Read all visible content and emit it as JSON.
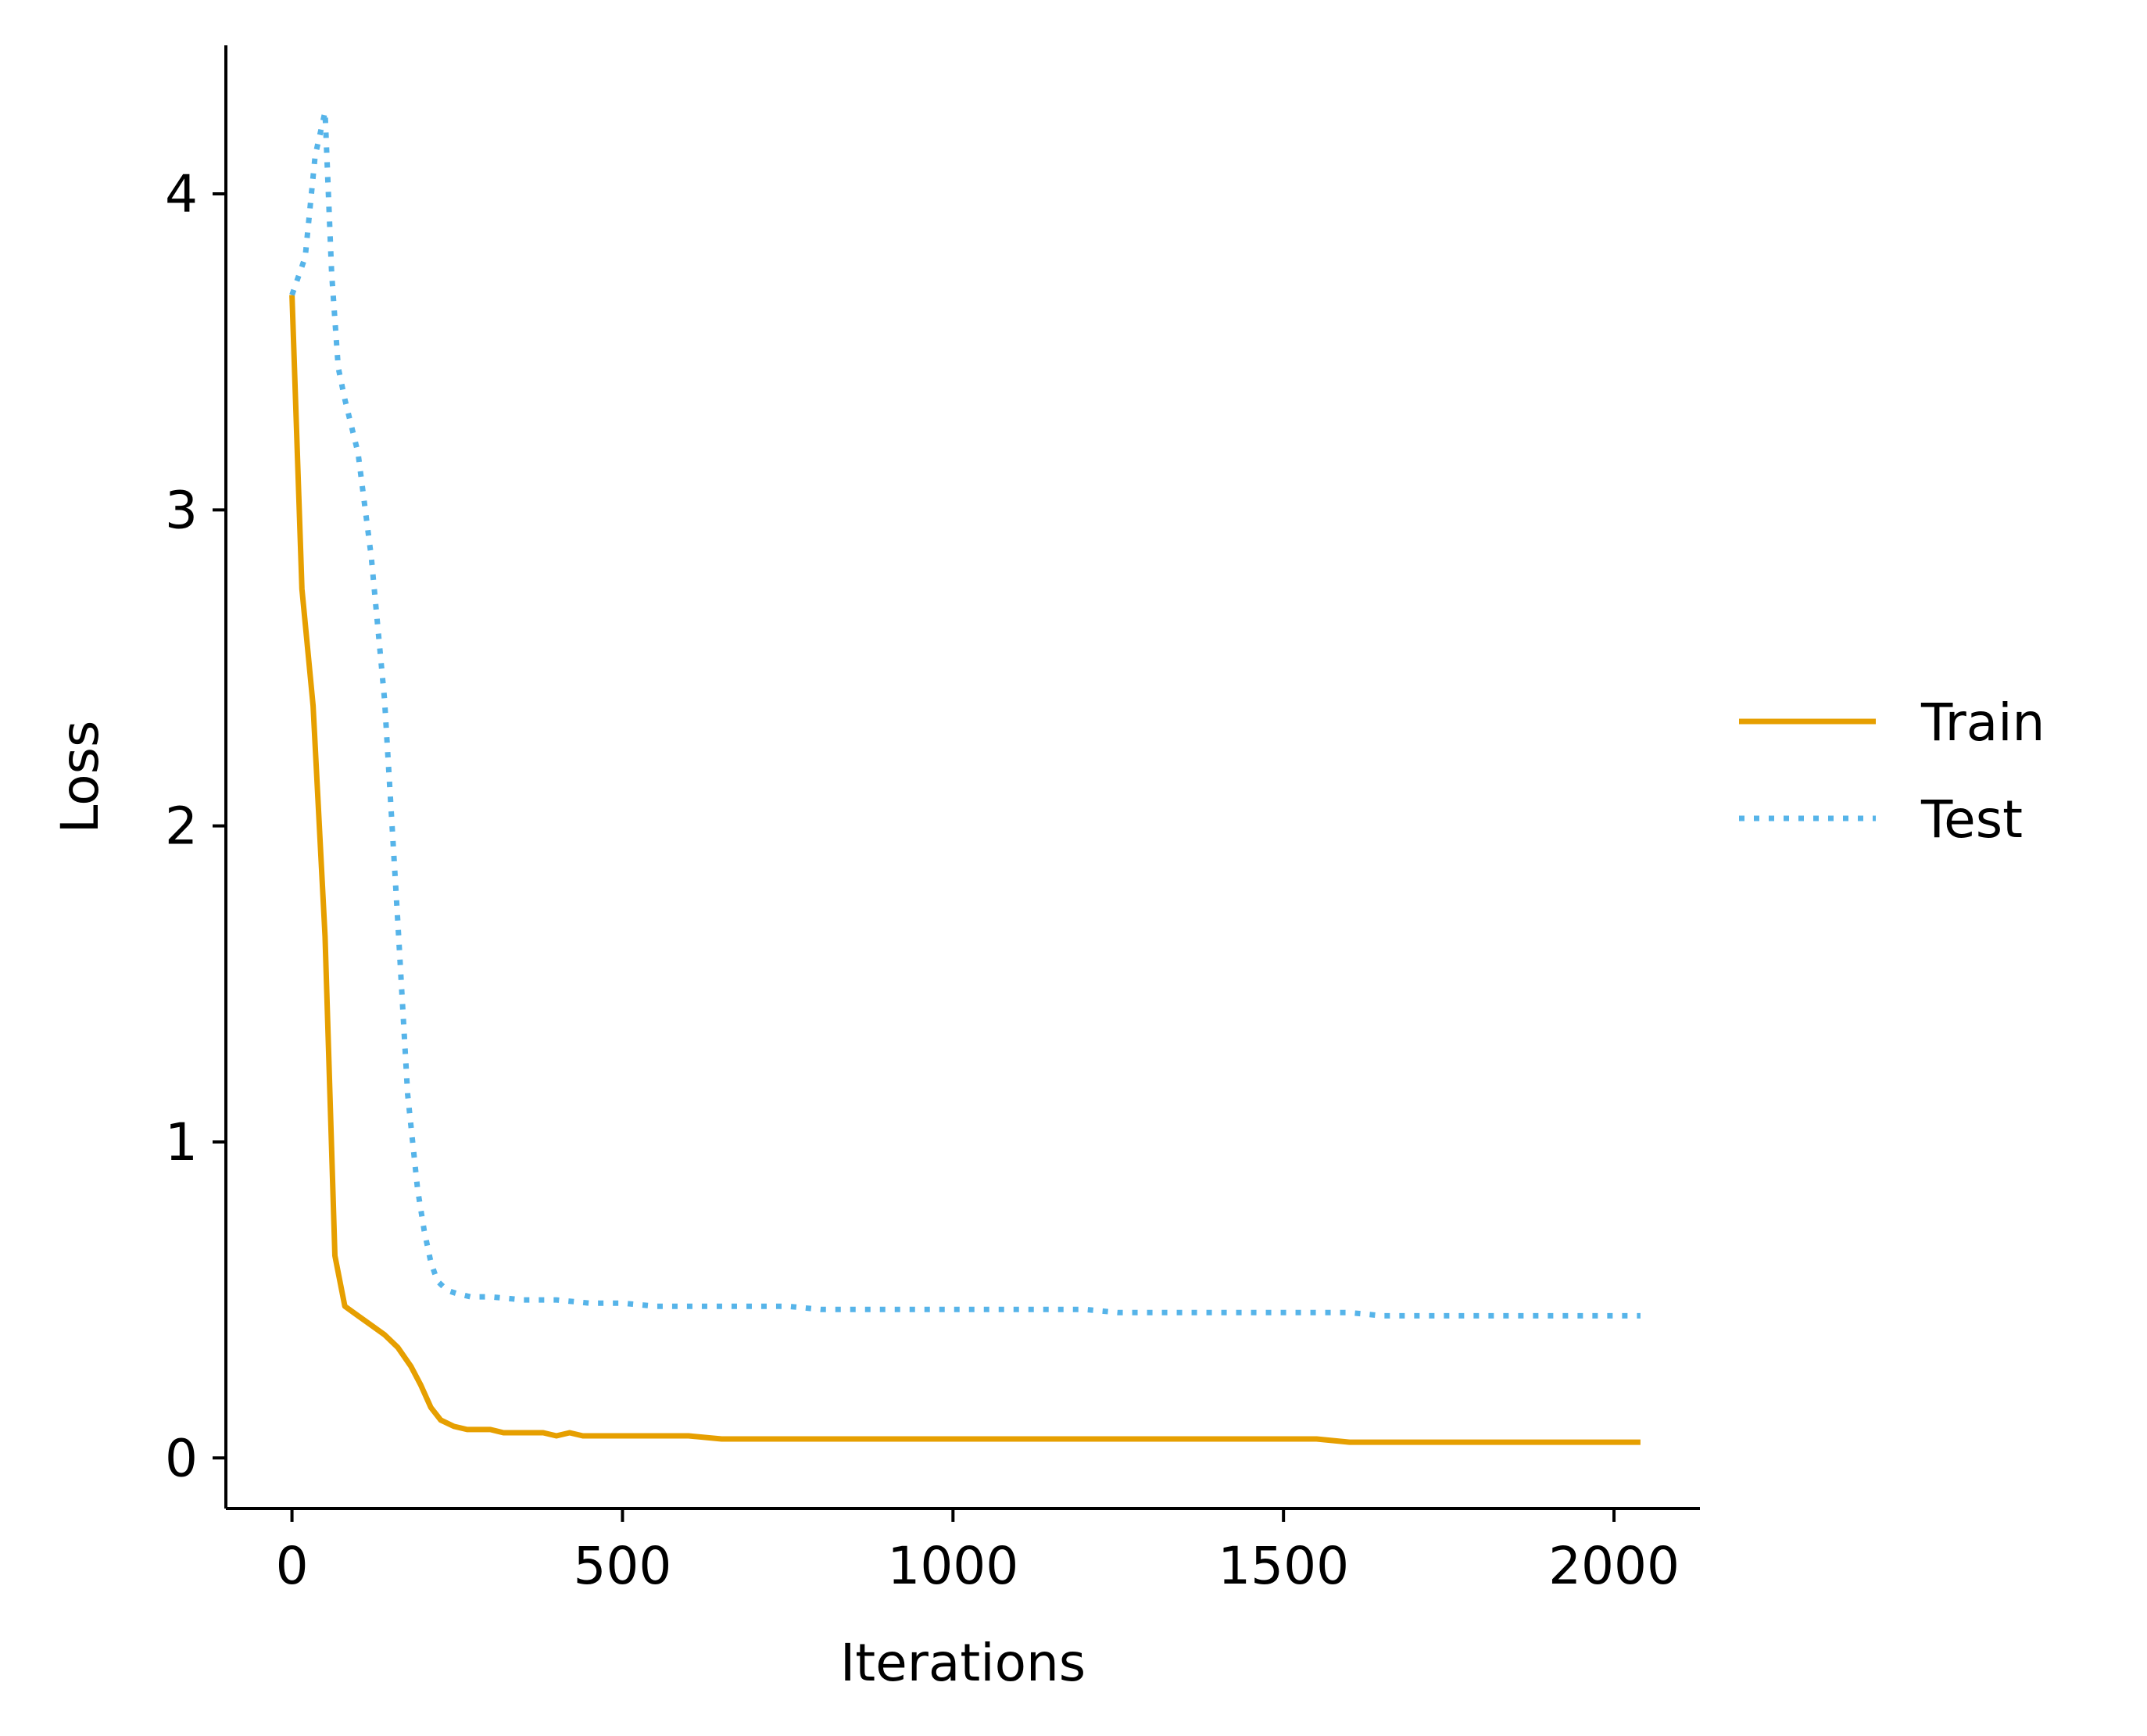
{
  "chart_data": {
    "type": "line",
    "xlabel": "Iterations",
    "ylabel": "Loss",
    "xlim": [
      -100,
      2130
    ],
    "ylim": [
      -0.16,
      4.47
    ],
    "xticks": [
      0,
      500,
      1000,
      1500,
      2000
    ],
    "xtick_labels": [
      "0",
      "500",
      "1000",
      "1500",
      "2000"
    ],
    "yticks": [
      0,
      1,
      2,
      3,
      4
    ],
    "ytick_labels": [
      "0",
      "1",
      "2",
      "3",
      "4"
    ],
    "grid": false,
    "legend": {
      "placement": "right",
      "frame": false
    },
    "series": [
      {
        "name": "Train",
        "color": "#E69F00",
        "style": "solid",
        "x": [
          0,
          15,
          32,
          50,
          65,
          80,
          100,
          120,
          140,
          160,
          180,
          195,
          210,
          225,
          245,
          265,
          285,
          300,
          320,
          340,
          360,
          380,
          400,
          420,
          440,
          460,
          480,
          500,
          530,
          560,
          600,
          650,
          700,
          750,
          800,
          850,
          900,
          950,
          1000,
          1050,
          1100,
          1150,
          1200,
          1250,
          1300,
          1350,
          1400,
          1450,
          1500,
          1550,
          1600,
          1650,
          1700,
          1750,
          1800,
          1850,
          1900,
          1950,
          2000,
          2040
        ],
        "y": [
          3.68,
          2.75,
          2.38,
          1.65,
          0.64,
          0.48,
          0.45,
          0.42,
          0.39,
          0.35,
          0.29,
          0.23,
          0.16,
          0.12,
          0.1,
          0.09,
          0.09,
          0.09,
          0.08,
          0.08,
          0.08,
          0.08,
          0.07,
          0.08,
          0.07,
          0.07,
          0.07,
          0.07,
          0.07,
          0.07,
          0.07,
          0.06,
          0.06,
          0.06,
          0.06,
          0.06,
          0.06,
          0.06,
          0.06,
          0.06,
          0.06,
          0.06,
          0.06,
          0.06,
          0.06,
          0.06,
          0.06,
          0.06,
          0.06,
          0.06,
          0.05,
          0.05,
          0.05,
          0.05,
          0.05,
          0.05,
          0.05,
          0.05,
          0.05,
          0.05
        ]
      },
      {
        "name": "Test",
        "color": "#56B4E9",
        "style": "dotted",
        "x": [
          0,
          20,
          35,
          50,
          60,
          70,
          80,
          100,
          120,
          140,
          160,
          175,
          190,
          200,
          210,
          220,
          235,
          250,
          270,
          300,
          350,
          400,
          450,
          500,
          550,
          600,
          650,
          700,
          750,
          800,
          850,
          900,
          950,
          1000,
          1050,
          1100,
          1150,
          1200,
          1250,
          1300,
          1350,
          1400,
          1450,
          1500,
          1550,
          1600,
          1650,
          1700,
          1750,
          1800,
          1850,
          1900,
          1950,
          2000,
          2040
        ],
        "y": [
          3.68,
          3.8,
          4.12,
          4.26,
          3.75,
          3.45,
          3.35,
          3.18,
          2.85,
          2.4,
          1.7,
          1.15,
          0.85,
          0.72,
          0.62,
          0.56,
          0.53,
          0.52,
          0.51,
          0.51,
          0.5,
          0.5,
          0.49,
          0.49,
          0.48,
          0.48,
          0.48,
          0.48,
          0.48,
          0.47,
          0.47,
          0.47,
          0.47,
          0.47,
          0.47,
          0.47,
          0.47,
          0.47,
          0.46,
          0.46,
          0.46,
          0.46,
          0.46,
          0.46,
          0.46,
          0.46,
          0.45,
          0.45,
          0.45,
          0.45,
          0.45,
          0.45,
          0.45,
          0.45,
          0.45
        ]
      }
    ]
  }
}
